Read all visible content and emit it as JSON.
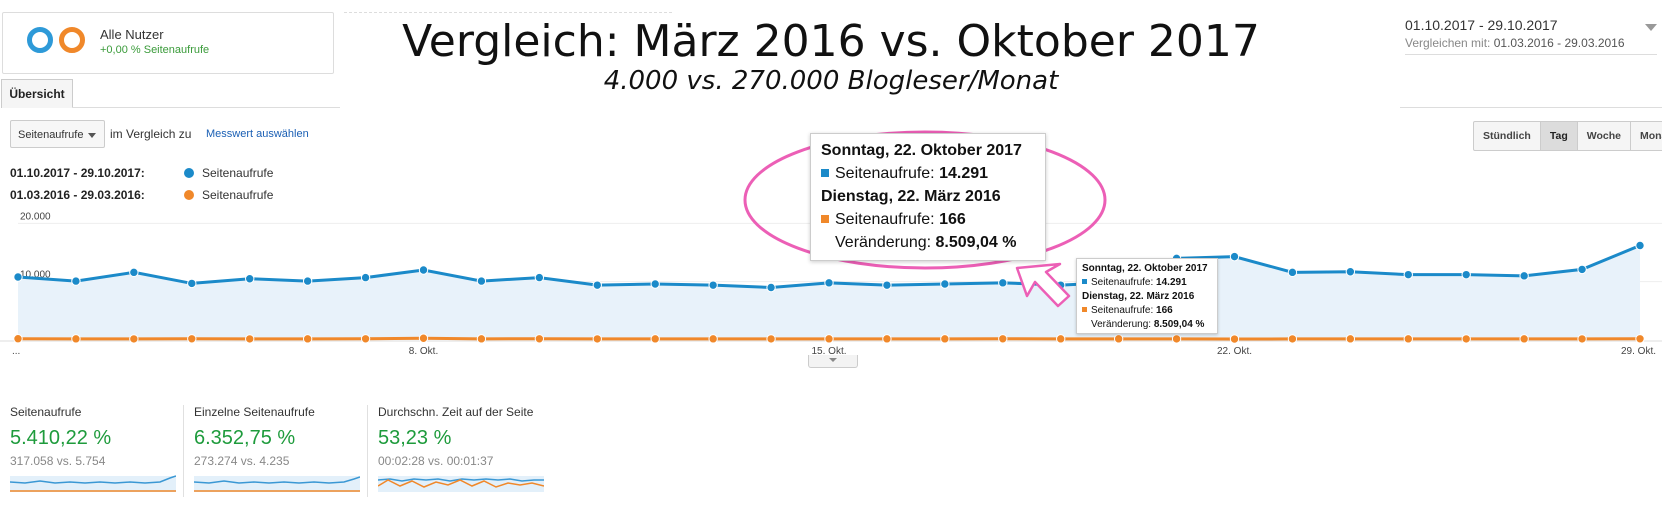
{
  "headline": "Vergleich: März 2016 vs. Oktober 2017",
  "subheadline": "4.000 vs. 270.000 Blogleser/Monat",
  "segment": {
    "name": "Alle Nutzer",
    "sub": "+0,00 % Seitenaufrufe"
  },
  "date_range": {
    "main": "01.10.2017 - 29.10.2017",
    "compare_prefix": "Vergleichen mit:",
    "compare": "01.03.2016 - 29.03.2016"
  },
  "tabs": {
    "overview": "Übersicht"
  },
  "controls": {
    "metric_select": "Seitenaufrufe",
    "compare_label": "im Vergleich zu",
    "pick_metric": "Messwert auswählen",
    "periods": [
      "Stündlich",
      "Tag",
      "Woche",
      "Monat"
    ],
    "active_period": "Tag"
  },
  "legend": [
    {
      "date": "01.10.2017 - 29.10.2017:",
      "name": "Seitenaufrufe",
      "color": "#1b8ac9"
    },
    {
      "date": "01.03.2016 - 29.03.2016:",
      "name": "Seitenaufrufe",
      "color": "#f0882a"
    }
  ],
  "chart_data": {
    "type": "line",
    "ylim": [
      0,
      24000
    ],
    "y_ticks": [
      "20.000",
      "10.000"
    ],
    "y_tick_values": [
      20000,
      10000
    ],
    "x_ticks": [
      "...",
      "8. Okt.",
      "15. Okt.",
      "22. Okt.",
      "29. Okt."
    ],
    "x_tick_index": [
      0,
      7,
      14,
      21,
      28
    ],
    "series": [
      {
        "name": "Seitenaufrufe",
        "color": "#1b8ac9",
        "values": [
          10800,
          10100,
          11600,
          9700,
          10500,
          10100,
          10700,
          12000,
          10100,
          10700,
          9400,
          9600,
          9400,
          9000,
          9800,
          9400,
          9600,
          9800,
          9400,
          9900,
          14000,
          14291,
          11600,
          11700,
          11200,
          11200,
          11000,
          12100,
          16200
        ]
      },
      {
        "name": "Seitenaufrufe",
        "color": "#f0882a",
        "values": [
          220,
          200,
          190,
          210,
          190,
          200,
          210,
          300,
          200,
          210,
          190,
          200,
          200,
          190,
          200,
          200,
          200,
          210,
          200,
          200,
          190,
          166,
          190,
          200,
          200,
          190,
          200,
          190,
          210
        ]
      }
    ]
  },
  "tooltip": {
    "date1": "Sonntag, 22. Oktober 2017",
    "metric_label": "Seitenaufrufe:",
    "value1": "14.291",
    "date2": "Dienstag, 22. März 2016",
    "value2": "166",
    "change_label": "Veränderung:",
    "change": "8.509,04 %"
  },
  "scorecards": [
    {
      "title": "Seitenaufrufe",
      "value": "5.410,22 %",
      "compare": "317.058 vs. 5.754"
    },
    {
      "title": "Einzelne Seitenaufrufe",
      "value": "6.352,75 %",
      "compare": "273.274 vs. 4.235"
    },
    {
      "title": "Durchschn. Zeit auf der Seite",
      "value": "53,23 %",
      "compare": "00:02:28 vs. 00:01:37"
    }
  ]
}
